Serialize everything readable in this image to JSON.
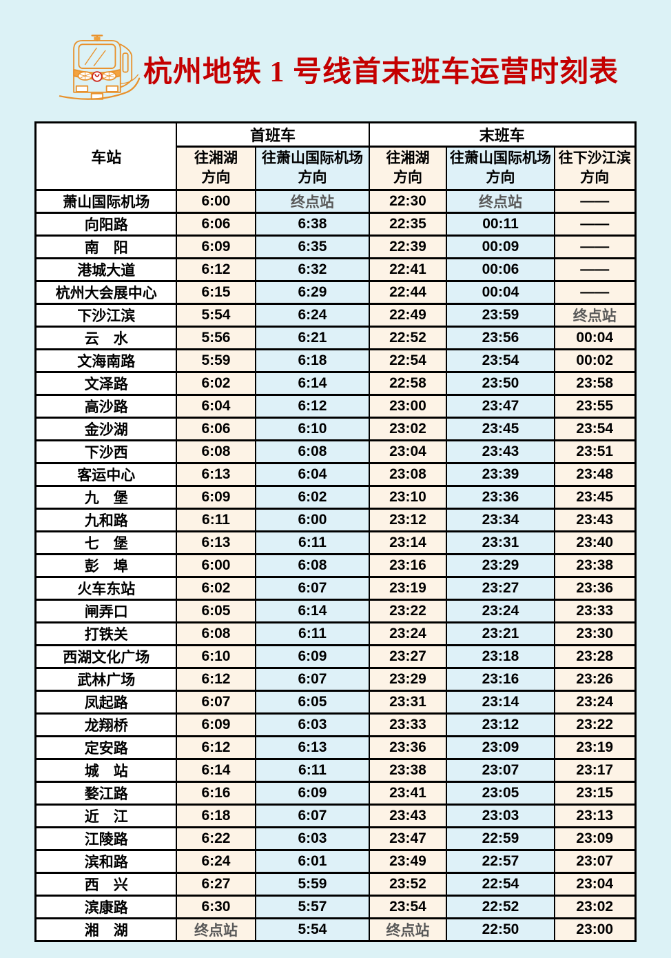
{
  "page": {
    "background": "#dcf2f6"
  },
  "header": {
    "title": "杭州地铁 1 号线首末班车运营时刻表",
    "title_color": "#c40000",
    "logo_icon": "metro-train-icon",
    "logo_color": "#e8912c"
  },
  "table": {
    "colors": {
      "cream": "#fdf3e6",
      "blue": "#def1f8",
      "white": "#ffffff",
      "border": "#000000",
      "terminal_text": "#595959",
      "time_text": "#000000"
    },
    "column_tints": [
      "white",
      "cream",
      "blue",
      "cream",
      "blue",
      "cream"
    ],
    "head": {
      "station": "车站",
      "first_train": "首班车",
      "last_train": "末班车",
      "subheads": [
        {
          "line1": "往湘湖",
          "line2": "方向",
          "tint": "cream"
        },
        {
          "line1": "往萧山国际机场",
          "line2": "方向",
          "tint": "blue"
        },
        {
          "line1": "往湘湖",
          "line2": "方向",
          "tint": "cream"
        },
        {
          "line1": "往萧山国际机场",
          "line2": "方向",
          "tint": "blue"
        },
        {
          "line1": "往下沙江滨",
          "line2": "方向",
          "tint": "cream"
        }
      ]
    },
    "terminal_label": "终点站",
    "no_service_label": "——",
    "rows": [
      {
        "station": "萧山国际机场",
        "cells": [
          "6:00",
          "终点站",
          "22:30",
          "终点站",
          "——"
        ]
      },
      {
        "station": "向阳路",
        "cells": [
          "6:06",
          "6:38",
          "22:35",
          "00:11",
          "——"
        ]
      },
      {
        "station": "南　阳",
        "cells": [
          "6:09",
          "6:35",
          "22:39",
          "00:09",
          "——"
        ]
      },
      {
        "station": "港城大道",
        "cells": [
          "6:12",
          "6:32",
          "22:41",
          "00:06",
          "——"
        ]
      },
      {
        "station": "杭州大会展中心",
        "cells": [
          "6:15",
          "6:29",
          "22:44",
          "00:04",
          "——"
        ]
      },
      {
        "station": "下沙江滨",
        "cells": [
          "5:54",
          "6:24",
          "22:49",
          "23:59",
          "终点站"
        ]
      },
      {
        "station": "云　水",
        "cells": [
          "5:56",
          "6:21",
          "22:52",
          "23:56",
          "00:04"
        ]
      },
      {
        "station": "文海南路",
        "cells": [
          "5:59",
          "6:18",
          "22:54",
          "23:54",
          "00:02"
        ]
      },
      {
        "station": "文泽路",
        "cells": [
          "6:02",
          "6:14",
          "22:58",
          "23:50",
          "23:58"
        ]
      },
      {
        "station": "高沙路",
        "cells": [
          "6:04",
          "6:12",
          "23:00",
          "23:47",
          "23:55"
        ]
      },
      {
        "station": "金沙湖",
        "cells": [
          "6:06",
          "6:10",
          "23:02",
          "23:45",
          "23:54"
        ]
      },
      {
        "station": "下沙西",
        "cells": [
          "6:08",
          "6:08",
          "23:04",
          "23:43",
          "23:51"
        ]
      },
      {
        "station": "客运中心",
        "cells": [
          "6:13",
          "6:04",
          "23:08",
          "23:39",
          "23:48"
        ]
      },
      {
        "station": "九　堡",
        "cells": [
          "6:09",
          "6:02",
          "23:10",
          "23:36",
          "23:45"
        ]
      },
      {
        "station": "九和路",
        "cells": [
          "6:11",
          "6:00",
          "23:12",
          "23:34",
          "23:43"
        ]
      },
      {
        "station": "七　堡",
        "cells": [
          "6:13",
          "6:11",
          "23:14",
          "23:31",
          "23:40"
        ]
      },
      {
        "station": "彭　埠",
        "cells": [
          "6:00",
          "6:08",
          "23:16",
          "23:29",
          "23:38"
        ]
      },
      {
        "station": "火车东站",
        "cells": [
          "6:02",
          "6:07",
          "23:19",
          "23:27",
          "23:36"
        ]
      },
      {
        "station": "闸弄口",
        "cells": [
          "6:05",
          "6:14",
          "23:22",
          "23:24",
          "23:33"
        ]
      },
      {
        "station": "打铁关",
        "cells": [
          "6:08",
          "6:11",
          "23:24",
          "23:21",
          "23:30"
        ]
      },
      {
        "station": "西湖文化广场",
        "cells": [
          "6:10",
          "6:09",
          "23:27",
          "23:18",
          "23:28"
        ]
      },
      {
        "station": "武林广场",
        "cells": [
          "6:12",
          "6:07",
          "23:29",
          "23:16",
          "23:26"
        ]
      },
      {
        "station": "凤起路",
        "cells": [
          "6:07",
          "6:05",
          "23:31",
          "23:14",
          "23:24"
        ]
      },
      {
        "station": "龙翔桥",
        "cells": [
          "6:09",
          "6:03",
          "23:33",
          "23:12",
          "23:22"
        ]
      },
      {
        "station": "定安路",
        "cells": [
          "6:12",
          "6:13",
          "23:36",
          "23:09",
          "23:19"
        ]
      },
      {
        "station": "城　站",
        "cells": [
          "6:14",
          "6:11",
          "23:38",
          "23:07",
          "23:17"
        ]
      },
      {
        "station": "婺江路",
        "cells": [
          "6:16",
          "6:09",
          "23:41",
          "23:05",
          "23:15"
        ]
      },
      {
        "station": "近　江",
        "cells": [
          "6:18",
          "6:07",
          "23:43",
          "23:03",
          "23:13"
        ]
      },
      {
        "station": "江陵路",
        "cells": [
          "6:22",
          "6:03",
          "23:47",
          "22:59",
          "23:09"
        ]
      },
      {
        "station": "滨和路",
        "cells": [
          "6:24",
          "6:01",
          "23:49",
          "22:57",
          "23:07"
        ]
      },
      {
        "station": "西　兴",
        "cells": [
          "6:27",
          "5:59",
          "23:52",
          "22:54",
          "23:04"
        ]
      },
      {
        "station": "滨康路",
        "cells": [
          "6:30",
          "5:57",
          "23:54",
          "22:52",
          "23:02"
        ]
      },
      {
        "station": "湘　湖",
        "cells": [
          "终点站",
          "5:54",
          "终点站",
          "22:50",
          "23:00"
        ]
      }
    ]
  }
}
